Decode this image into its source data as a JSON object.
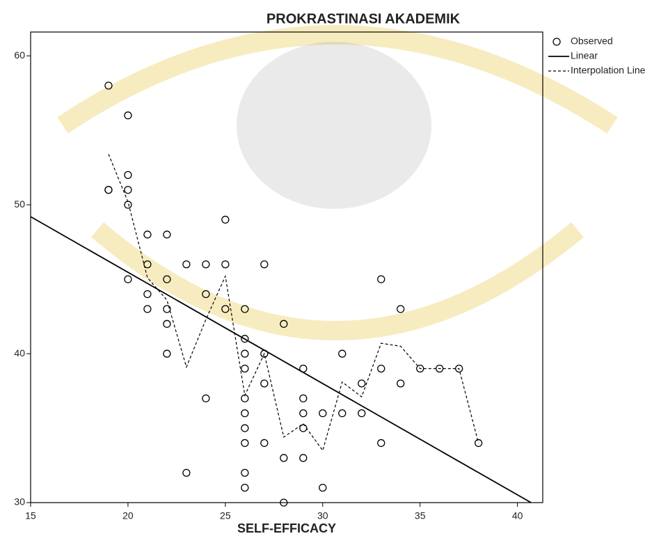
{
  "chart_data": {
    "type": "scatter",
    "title": "PROKRASTINASI AKADEMIK",
    "x_label": "SELF-EFFICACY",
    "xlim": [
      15,
      41.3
    ],
    "ylim": [
      30,
      61.6
    ],
    "xticks": [
      15,
      20,
      25,
      30,
      35,
      40
    ],
    "yticks": [
      30,
      40,
      50,
      60
    ],
    "legend": "top-right",
    "series": [
      {
        "name": "Observed",
        "kind": "scatter",
        "color": "#000000",
        "x": [
          19,
          19,
          19,
          20,
          20,
          20,
          20,
          20,
          21,
          21,
          21,
          21,
          22,
          22,
          22,
          22,
          22,
          23,
          23,
          24,
          24,
          24,
          25,
          25,
          25,
          26,
          26,
          26,
          26,
          26,
          26,
          26,
          26,
          26,
          26,
          27,
          27,
          27,
          27,
          28,
          28,
          28,
          29,
          29,
          29,
          29,
          29,
          30,
          30,
          31,
          31,
          32,
          32,
          33,
          33,
          33,
          34,
          34,
          35,
          36,
          37,
          38
        ],
        "values": [
          58,
          51,
          51,
          56,
          52,
          51,
          50,
          45,
          48,
          46,
          44,
          43,
          48,
          45,
          43,
          42,
          40,
          46,
          32,
          46,
          44,
          37,
          49,
          46,
          43,
          43,
          41,
          40,
          39,
          37,
          36,
          35,
          34,
          32,
          31,
          46,
          40,
          38,
          34,
          42,
          33,
          30,
          39,
          37,
          36,
          35,
          33,
          36,
          31,
          40,
          36,
          38,
          36,
          45,
          39,
          34,
          43,
          38,
          39,
          39,
          39,
          34
        ]
      },
      {
        "name": "Linear",
        "kind": "line",
        "color": "#000000",
        "x": [
          15,
          40.7
        ],
        "values": [
          49.2,
          30
        ]
      },
      {
        "name": "Interpolation Line",
        "kind": "line",
        "dashed": true,
        "color": "#000000",
        "x": [
          19,
          20,
          21,
          22,
          23,
          24,
          25,
          26,
          27,
          28,
          29,
          30,
          31,
          32,
          33,
          34,
          35,
          36,
          37,
          38
        ],
        "values": [
          53.4,
          50.2,
          45.1,
          43.6,
          39.1,
          42.3,
          45.2,
          37.2,
          40,
          34.4,
          35.3,
          33.5,
          38.1,
          37.1,
          40.7,
          40.5,
          39,
          39,
          39,
          34
        ]
      }
    ]
  }
}
